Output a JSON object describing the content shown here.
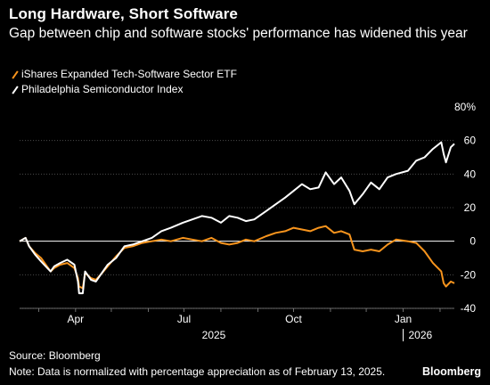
{
  "header": {
    "title": "Long Hardware, Short Software",
    "subtitle": "Gap between chip and software stocks' performance has widened this year"
  },
  "colors": {
    "background": "#000000",
    "software": "#F7941D",
    "semis": "#FFFFFF",
    "grid": "#555555",
    "zero_line": "#FFFFFF"
  },
  "footer": {
    "source": "Source: Bloomberg",
    "note": "Note: Data is normalized with percentage appreciation as of February 13, 2025.",
    "brand": "Bloomberg"
  },
  "chart_data": {
    "type": "line",
    "title": "Long Hardware, Short Software",
    "x_tick_labels": [
      "Apr",
      "Jul",
      "Oct",
      "Jan"
    ],
    "x_year_labels": [
      "2025",
      "2026"
    ],
    "y_tick_labels": [
      "80%",
      "60",
      "40",
      "20",
      "0",
      "-20",
      "-40"
    ],
    "ylim": [
      -40,
      80
    ],
    "xlim": [
      "2025-02-13",
      "2026-02-13"
    ],
    "grid": true,
    "legend_position": "top-left",
    "series": [
      {
        "name": "iShares Expanded Tech-Software Sector ETF",
        "color": "#F7941D",
        "points": [
          [
            "2025-02-13",
            0
          ],
          [
            "2025-02-18",
            2
          ],
          [
            "2025-02-21",
            -3
          ],
          [
            "2025-02-26",
            -7
          ],
          [
            "2025-03-03",
            -10
          ],
          [
            "2025-03-07",
            -14
          ],
          [
            "2025-03-11",
            -18
          ],
          [
            "2025-03-14",
            -16
          ],
          [
            "2025-03-19",
            -14
          ],
          [
            "2025-03-25",
            -13
          ],
          [
            "2025-03-31",
            -16
          ],
          [
            "2025-04-03",
            -22
          ],
          [
            "2025-04-04",
            -27
          ],
          [
            "2025-04-07",
            -28
          ],
          [
            "2025-04-09",
            -19
          ],
          [
            "2025-04-14",
            -22
          ],
          [
            "2025-04-18",
            -23
          ],
          [
            "2025-04-22",
            -20
          ],
          [
            "2025-04-28",
            -15
          ],
          [
            "2025-05-05",
            -9
          ],
          [
            "2025-05-12",
            -4
          ],
          [
            "2025-05-19",
            -3
          ],
          [
            "2025-05-27",
            -1
          ],
          [
            "2025-06-04",
            0
          ],
          [
            "2025-06-12",
            1
          ],
          [
            "2025-06-20",
            0
          ],
          [
            "2025-06-30",
            2
          ],
          [
            "2025-07-08",
            1
          ],
          [
            "2025-07-16",
            0
          ],
          [
            "2025-07-24",
            2
          ],
          [
            "2025-08-01",
            -1
          ],
          [
            "2025-08-08",
            -2
          ],
          [
            "2025-08-15",
            -1
          ],
          [
            "2025-08-22",
            1
          ],
          [
            "2025-08-29",
            0
          ],
          [
            "2025-09-08",
            3
          ],
          [
            "2025-09-16",
            5
          ],
          [
            "2025-09-24",
            6
          ],
          [
            "2025-10-01",
            8
          ],
          [
            "2025-10-08",
            7
          ],
          [
            "2025-10-15",
            6
          ],
          [
            "2025-10-22",
            8
          ],
          [
            "2025-10-28",
            9
          ],
          [
            "2025-11-04",
            5
          ],
          [
            "2025-11-10",
            6
          ],
          [
            "2025-11-17",
            4
          ],
          [
            "2025-11-21",
            -5
          ],
          [
            "2025-11-28",
            -6
          ],
          [
            "2025-12-05",
            -5
          ],
          [
            "2025-12-12",
            -6
          ],
          [
            "2025-12-19",
            -2
          ],
          [
            "2025-12-26",
            1
          ],
          [
            "2026-01-05",
            0
          ],
          [
            "2026-01-12",
            -1
          ],
          [
            "2026-01-19",
            -6
          ],
          [
            "2026-01-26",
            -13
          ],
          [
            "2026-02-02",
            -18
          ],
          [
            "2026-02-04",
            -25
          ],
          [
            "2026-02-06",
            -27
          ],
          [
            "2026-02-10",
            -24
          ],
          [
            "2026-02-13",
            -25
          ]
        ]
      },
      {
        "name": "Philadelphia Semiconductor Index",
        "color": "#FFFFFF",
        "points": [
          [
            "2025-02-13",
            0
          ],
          [
            "2025-02-18",
            2
          ],
          [
            "2025-02-21",
            -3
          ],
          [
            "2025-02-26",
            -8
          ],
          [
            "2025-03-03",
            -12
          ],
          [
            "2025-03-07",
            -15
          ],
          [
            "2025-03-11",
            -18
          ],
          [
            "2025-03-14",
            -15
          ],
          [
            "2025-03-19",
            -13
          ],
          [
            "2025-03-25",
            -11
          ],
          [
            "2025-03-31",
            -14
          ],
          [
            "2025-04-03",
            -24
          ],
          [
            "2025-04-04",
            -31
          ],
          [
            "2025-04-07",
            -31
          ],
          [
            "2025-04-09",
            -18
          ],
          [
            "2025-04-14",
            -23
          ],
          [
            "2025-04-18",
            -24
          ],
          [
            "2025-04-22",
            -20
          ],
          [
            "2025-04-28",
            -14
          ],
          [
            "2025-05-05",
            -10
          ],
          [
            "2025-05-12",
            -3
          ],
          [
            "2025-05-19",
            -2
          ],
          [
            "2025-05-27",
            0
          ],
          [
            "2025-06-04",
            2
          ],
          [
            "2025-06-12",
            6
          ],
          [
            "2025-06-20",
            8
          ],
          [
            "2025-06-30",
            11
          ],
          [
            "2025-07-08",
            13
          ],
          [
            "2025-07-16",
            15
          ],
          [
            "2025-07-24",
            14
          ],
          [
            "2025-08-01",
            11
          ],
          [
            "2025-08-08",
            15
          ],
          [
            "2025-08-15",
            14
          ],
          [
            "2025-08-22",
            12
          ],
          [
            "2025-08-29",
            13
          ],
          [
            "2025-09-08",
            18
          ],
          [
            "2025-09-16",
            22
          ],
          [
            "2025-09-24",
            26
          ],
          [
            "2025-10-01",
            30
          ],
          [
            "2025-10-08",
            34
          ],
          [
            "2025-10-15",
            31
          ],
          [
            "2025-10-22",
            32
          ],
          [
            "2025-10-28",
            41
          ],
          [
            "2025-11-04",
            34
          ],
          [
            "2025-11-10",
            38
          ],
          [
            "2025-11-17",
            30
          ],
          [
            "2025-11-21",
            22
          ],
          [
            "2025-11-28",
            28
          ],
          [
            "2025-12-05",
            35
          ],
          [
            "2025-12-12",
            31
          ],
          [
            "2025-12-19",
            38
          ],
          [
            "2025-12-26",
            40
          ],
          [
            "2026-01-05",
            42
          ],
          [
            "2026-01-12",
            48
          ],
          [
            "2026-01-19",
            50
          ],
          [
            "2026-01-26",
            55
          ],
          [
            "2026-02-02",
            59
          ],
          [
            "2026-02-04",
            52
          ],
          [
            "2026-02-06",
            47
          ],
          [
            "2026-02-10",
            56
          ],
          [
            "2026-02-13",
            58
          ]
        ]
      }
    ]
  }
}
